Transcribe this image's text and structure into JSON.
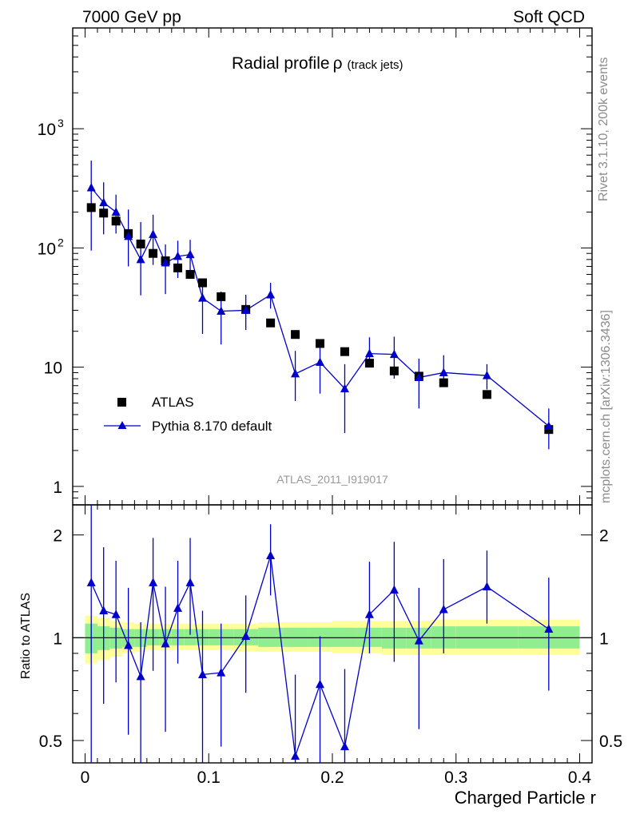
{
  "header": {
    "left": "7000 GeV pp",
    "right": "Soft QCD"
  },
  "side_labels": {
    "version": "Rivet 3.1.10,  200k events",
    "source": "mcplots.cern.ch [arXiv:1306.3436]"
  },
  "analysis_id": "ATLAS_2011_I919017",
  "colors": {
    "mc": "#0000cc",
    "data": "#000000",
    "band_inner": "#90ee90",
    "band_outer": "#ffff99"
  },
  "chart_data": [
    {
      "type": "scatter",
      "panel": "main",
      "title": "Radial profile",
      "title_symbol": "ρ",
      "title_sub": "(track jets)",
      "y_scale": "log",
      "xlim": [
        -0.01,
        0.41
      ],
      "ylim": [
        0.7,
        7000
      ],
      "y_tick_labels": [
        {
          "value": 1,
          "label": "1"
        },
        {
          "value": 10,
          "label": "10"
        },
        {
          "value": 100,
          "label": "10",
          "exp": "2"
        },
        {
          "value": 1000,
          "label": "10",
          "exp": "3"
        }
      ],
      "legend_position": "lower-left",
      "series": [
        {
          "name": "ATLAS",
          "marker": "square",
          "x": [
            0.005,
            0.015,
            0.025,
            0.035,
            0.045,
            0.055,
            0.065,
            0.075,
            0.085,
            0.095,
            0.11,
            0.13,
            0.15,
            0.17,
            0.19,
            0.21,
            0.23,
            0.25,
            0.27,
            0.29,
            0.325,
            0.375
          ],
          "y": [
            218,
            196,
            168,
            132,
            108,
            90,
            78,
            68,
            60,
            51,
            39,
            30.5,
            23.5,
            18.8,
            15.8,
            13.5,
            10.8,
            9.3,
            8.4,
            7.4,
            5.9,
            3.0
          ]
        },
        {
          "name": "Pythia 8.170 default",
          "marker": "triangle",
          "x": [
            0.005,
            0.015,
            0.025,
            0.035,
            0.045,
            0.055,
            0.065,
            0.075,
            0.085,
            0.095,
            0.11,
            0.13,
            0.15,
            0.17,
            0.19,
            0.21,
            0.23,
            0.25,
            0.27,
            0.29,
            0.325,
            0.375
          ],
          "y": [
            320,
            240,
            200,
            125,
            80,
            130,
            75,
            85,
            88,
            38,
            29.5,
            30,
            40.5,
            8.8,
            11,
            6.6,
            13,
            12.8,
            8.2,
            9,
            8.5,
            3.2
          ],
          "err_low": [
            95,
            130,
            132,
            70,
            40,
            72,
            41,
            56,
            61,
            19,
            15.5,
            20.5,
            31,
            5.2,
            6,
            2.8,
            10,
            8,
            4.5,
            6.9,
            6.5,
            2.05
          ],
          "err_high": [
            540,
            355,
            280,
            210,
            165,
            190,
            107,
            115,
            117,
            55,
            43,
            40.5,
            51,
            13.7,
            16.2,
            10.6,
            17.8,
            18,
            11.8,
            12.6,
            10.6,
            4.5
          ]
        }
      ]
    },
    {
      "type": "line",
      "panel": "ratio",
      "ylabel": "Ratio to ATLAS",
      "xlabel": "Charged Particle r",
      "y_scale": "log",
      "xlim": [
        -0.01,
        0.41
      ],
      "ylim": [
        0.43,
        2.45
      ],
      "x_tick_labels": [
        {
          "value": 0,
          "label": "0"
        },
        {
          "value": 0.1,
          "label": "0.1"
        },
        {
          "value": 0.2,
          "label": "0.2"
        },
        {
          "value": 0.3,
          "label": "0.3"
        },
        {
          "value": 0.4,
          "label": "0.4"
        }
      ],
      "y_tick_labels": [
        {
          "value": 0.5,
          "label": "0.5"
        },
        {
          "value": 1,
          "label": "1"
        },
        {
          "value": 2,
          "label": "2"
        }
      ],
      "reference_line": 1,
      "bands": {
        "edges": [
          0,
          0.01,
          0.02,
          0.03,
          0.04,
          0.05,
          0.06,
          0.07,
          0.08,
          0.09,
          0.1,
          0.12,
          0.14,
          0.16,
          0.18,
          0.2,
          0.22,
          0.24,
          0.26,
          0.28,
          0.3,
          0.35,
          0.4
        ],
        "inner_low": [
          0.9,
          0.92,
          0.93,
          0.94,
          0.94,
          0.95,
          0.95,
          0.95,
          0.95,
          0.95,
          0.95,
          0.95,
          0.94,
          0.94,
          0.94,
          0.94,
          0.94,
          0.93,
          0.93,
          0.93,
          0.93,
          0.93
        ],
        "inner_high": [
          1.1,
          1.08,
          1.07,
          1.06,
          1.06,
          1.06,
          1.06,
          1.06,
          1.06,
          1.06,
          1.06,
          1.06,
          1.07,
          1.07,
          1.07,
          1.07,
          1.07,
          1.07,
          1.07,
          1.08,
          1.08,
          1.08
        ],
        "outer_low": [
          0.84,
          0.86,
          0.88,
          0.9,
          0.91,
          0.92,
          0.92,
          0.92,
          0.92,
          0.92,
          0.92,
          0.91,
          0.91,
          0.91,
          0.91,
          0.9,
          0.9,
          0.89,
          0.89,
          0.89,
          0.89,
          0.89
        ],
        "outer_high": [
          1.16,
          1.14,
          1.12,
          1.11,
          1.1,
          1.1,
          1.1,
          1.1,
          1.1,
          1.1,
          1.1,
          1.1,
          1.11,
          1.11,
          1.11,
          1.12,
          1.12,
          1.12,
          1.12,
          1.13,
          1.13,
          1.13
        ]
      },
      "series": [
        {
          "name": "Pythia 8.170 default",
          "marker": "triangle",
          "x": [
            0.005,
            0.015,
            0.025,
            0.035,
            0.045,
            0.055,
            0.065,
            0.075,
            0.085,
            0.095,
            0.11,
            0.13,
            0.15,
            0.17,
            0.19,
            0.21,
            0.23,
            0.25,
            0.27,
            0.29,
            0.325,
            0.375
          ],
          "y": [
            1.45,
            1.2,
            1.17,
            0.95,
            0.77,
            1.45,
            0.96,
            1.22,
            1.45,
            0.78,
            0.79,
            1.01,
            1.74,
            0.45,
            0.73,
            0.48,
            1.17,
            1.38,
            0.98,
            1.21,
            1.41,
            1.06
          ],
          "err_low": [
            0.38,
            0.64,
            0.74,
            0.52,
            0.38,
            0.8,
            0.53,
            0.84,
            1.02,
            0.35,
            0.48,
            0.69,
            1.33,
            0.3,
            0.4,
            0.25,
            0.9,
            0.85,
            0.54,
            0.9,
            1.1,
            0.7
          ],
          "err_high": [
            2.5,
            1.84,
            1.68,
            1.4,
            1.11,
            1.96,
            1.41,
            1.68,
            1.96,
            1.2,
            1.1,
            1.33,
            2.15,
            0.78,
            1.01,
            0.81,
            1.67,
            1.91,
            1.4,
            1.7,
            1.8,
            1.5
          ]
        }
      ]
    }
  ]
}
